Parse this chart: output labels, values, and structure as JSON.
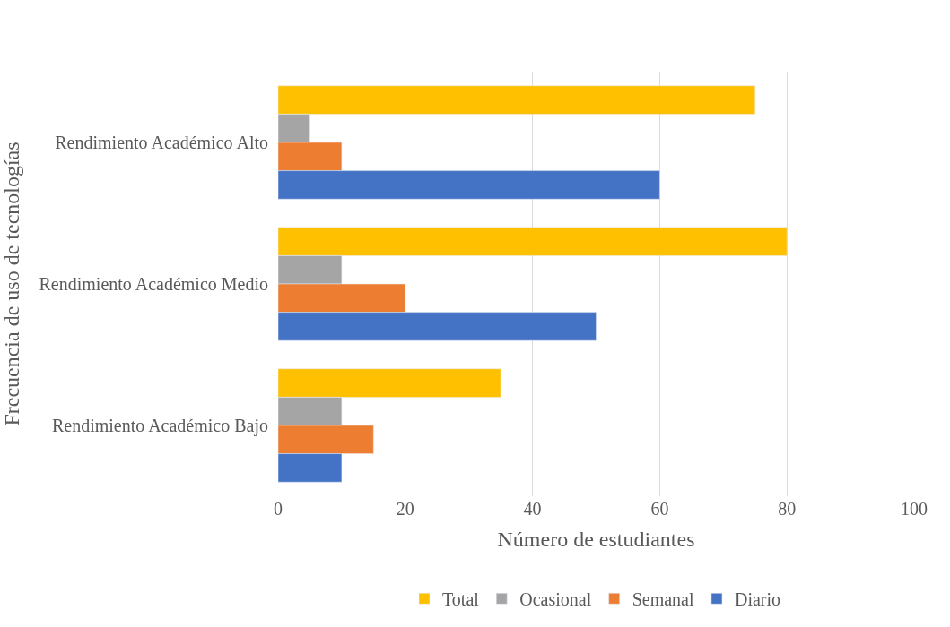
{
  "chart_data": {
    "type": "bar",
    "orientation": "horizontal",
    "xlabel": "Número de estudiantes",
    "ylabel": "Frecuencia de uso de tecnologías",
    "categories": [
      "Rendimiento Académico Alto",
      "Rendimiento Académico Medio",
      "Rendimiento Académico Bajo"
    ],
    "series": [
      {
        "name": "Total",
        "color": "#ffc000",
        "values": [
          75,
          80,
          35
        ]
      },
      {
        "name": "Ocasional",
        "color": "#a5a5a5",
        "values": [
          5,
          10,
          10
        ]
      },
      {
        "name": "Semanal",
        "color": "#ed7d31",
        "values": [
          10,
          20,
          15
        ]
      },
      {
        "name": "Diario",
        "color": "#4472c4",
        "values": [
          60,
          50,
          10
        ]
      }
    ],
    "xlim": [
      0,
      100
    ],
    "xticks": [
      0,
      20,
      40,
      60,
      80,
      100
    ],
    "grid": "x",
    "legend": "bottom"
  }
}
